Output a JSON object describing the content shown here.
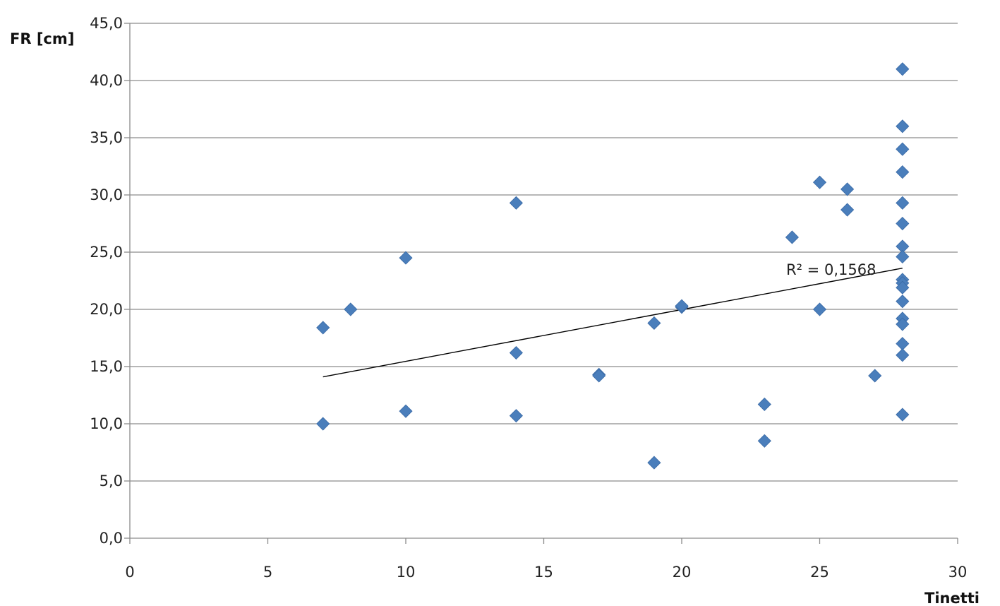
{
  "chart_data": {
    "type": "scatter",
    "xlabel": "Tinetti",
    "ylabel": "FR [cm]",
    "xlim": [
      0,
      30
    ],
    "ylim": [
      0,
      45
    ],
    "x_ticks": [
      "0",
      "5",
      "10",
      "15",
      "20",
      "25",
      "30"
    ],
    "y_ticks": [
      "0,0",
      "5,0",
      "10,0",
      "15,0",
      "20,0",
      "25,0",
      "30,0",
      "35,0",
      "40,0",
      "45,0"
    ],
    "grid": "horizontal",
    "legend": "none",
    "marker_color": "#4a7ebb",
    "trendline_color": "#000000",
    "series": [
      {
        "points": [
          {
            "x": 7,
            "y": 18.4
          },
          {
            "x": 7,
            "y": 10.0
          },
          {
            "x": 8,
            "y": 20.0
          },
          {
            "x": 10,
            "y": 24.5
          },
          {
            "x": 10,
            "y": 11.1
          },
          {
            "x": 14,
            "y": 29.3
          },
          {
            "x": 14,
            "y": 16.2
          },
          {
            "x": 14,
            "y": 10.7
          },
          {
            "x": 17,
            "y": 14.3
          },
          {
            "x": 17,
            "y": 14.2
          },
          {
            "x": 19,
            "y": 18.8
          },
          {
            "x": 19,
            "y": 6.6
          },
          {
            "x": 20,
            "y": 20.2
          },
          {
            "x": 20,
            "y": 20.3
          },
          {
            "x": 23,
            "y": 11.7
          },
          {
            "x": 23,
            "y": 8.5
          },
          {
            "x": 24,
            "y": 26.3
          },
          {
            "x": 25,
            "y": 31.1
          },
          {
            "x": 25,
            "y": 20.0
          },
          {
            "x": 26,
            "y": 30.5
          },
          {
            "x": 26,
            "y": 28.7
          },
          {
            "x": 27,
            "y": 14.2
          },
          {
            "x": 28,
            "y": 41.0
          },
          {
            "x": 28,
            "y": 36.0
          },
          {
            "x": 28,
            "y": 34.0
          },
          {
            "x": 28,
            "y": 32.0
          },
          {
            "x": 28,
            "y": 29.3
          },
          {
            "x": 28,
            "y": 27.5
          },
          {
            "x": 28,
            "y": 25.5
          },
          {
            "x": 28,
            "y": 24.6
          },
          {
            "x": 28,
            "y": 22.6
          },
          {
            "x": 28,
            "y": 22.3
          },
          {
            "x": 28,
            "y": 21.9
          },
          {
            "x": 28,
            "y": 20.7
          },
          {
            "x": 28,
            "y": 19.2
          },
          {
            "x": 28,
            "y": 18.7
          },
          {
            "x": 28,
            "y": 17.0
          },
          {
            "x": 28,
            "y": 16.0
          },
          {
            "x": 28,
            "y": 10.8
          }
        ]
      }
    ],
    "trendline": {
      "type": "linear",
      "x": [
        7,
        28
      ],
      "y": [
        14.1,
        23.6
      ]
    },
    "annotations": [
      {
        "text": "R² = 0,1568"
      }
    ]
  }
}
